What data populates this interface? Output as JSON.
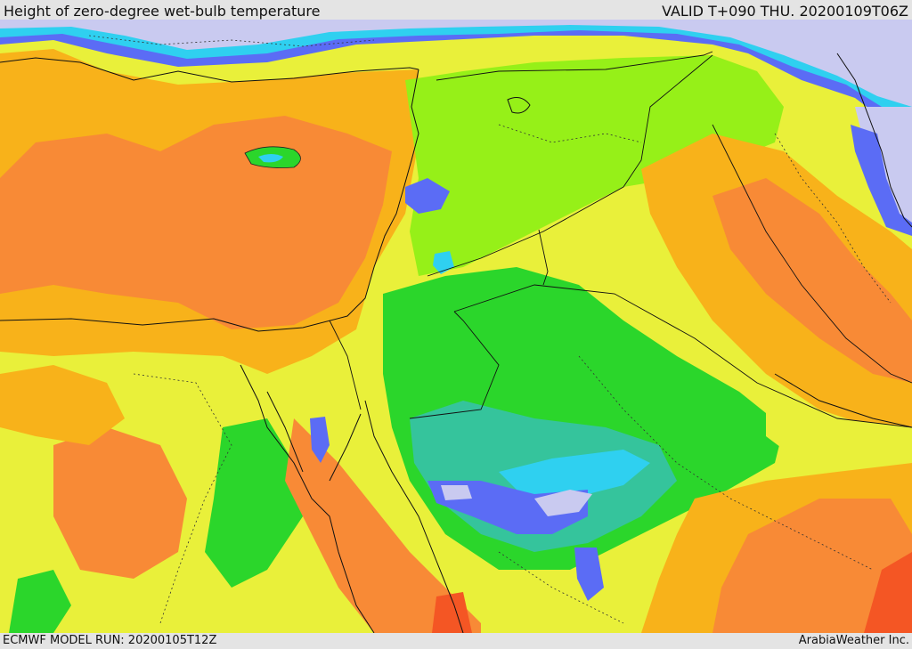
{
  "header": {
    "title": "Height of zero-degree wet-bulb temperature",
    "valid": "VALID T+090 THU. 20200109T06Z"
  },
  "footer": {
    "model_run": "ECMWF MODEL RUN: 20200105T12Z",
    "credit": "ArabiaWeather Inc."
  },
  "colors": {
    "lavender": "#c9caf0",
    "blue": "#5b6cf5",
    "cyan": "#2fd0f0",
    "teal": "#35c49c",
    "green": "#2bd62b",
    "lime": "#96f018",
    "yellow": "#e9f03a",
    "amber": "#f8b21a",
    "orange": "#f88a36",
    "red": "#f45624"
  }
}
